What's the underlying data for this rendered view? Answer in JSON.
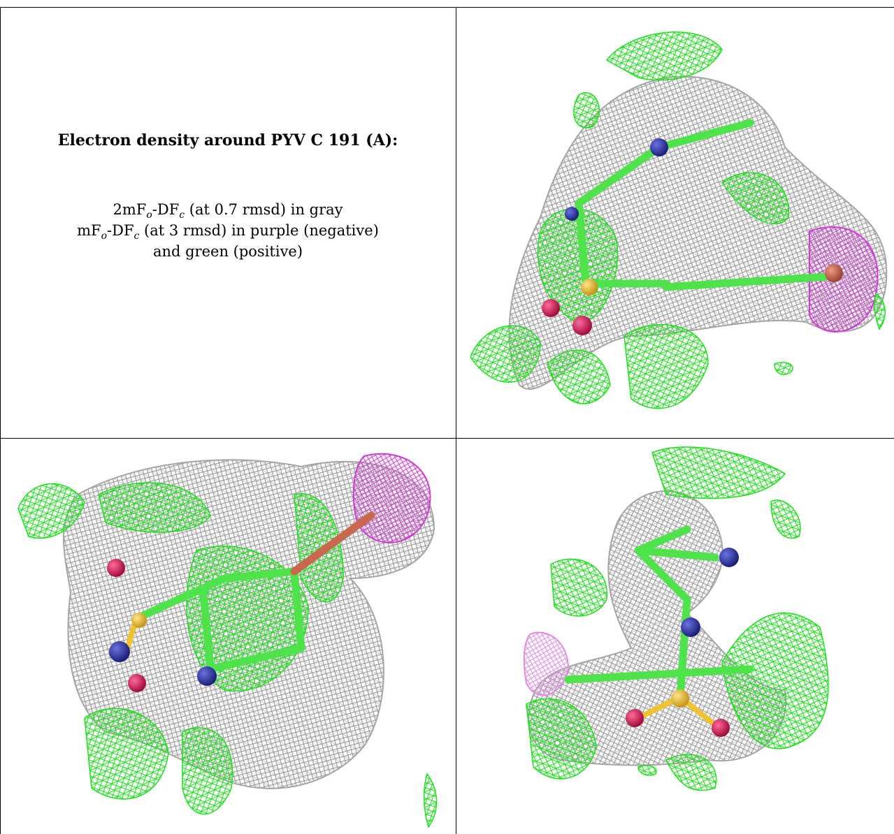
{
  "caption": {
    "title": "Electron density around PYV C 191 (A):",
    "line1_pre": "2mF",
    "line1_sub1": "o",
    "line1_mid": "-DF",
    "line1_sub2": "c",
    "line1_post": " (at 0.7 rmsd) in gray",
    "line2_pre": "mF",
    "line2_sub1": "o",
    "line2_mid": "-DF",
    "line2_sub2": "c",
    "line2_post": " (at 3 rmsd) in purple (negative)",
    "line3": "and green (positive)"
  },
  "colors": {
    "gray_density": "#9c9c9c",
    "positive_density": "#22e51f",
    "negative_density": "#d43bd6",
    "carbon": "#4ee34b",
    "nitrogen": "#2b34a8",
    "oxygen": "#e0175a",
    "sulfur": "#f1c232",
    "bromine": "#c8684e"
  },
  "panels": [
    {
      "id": "top-right",
      "view": "side"
    },
    {
      "id": "bottom-left",
      "view": "top"
    },
    {
      "id": "bottom-right",
      "view": "front"
    }
  ]
}
